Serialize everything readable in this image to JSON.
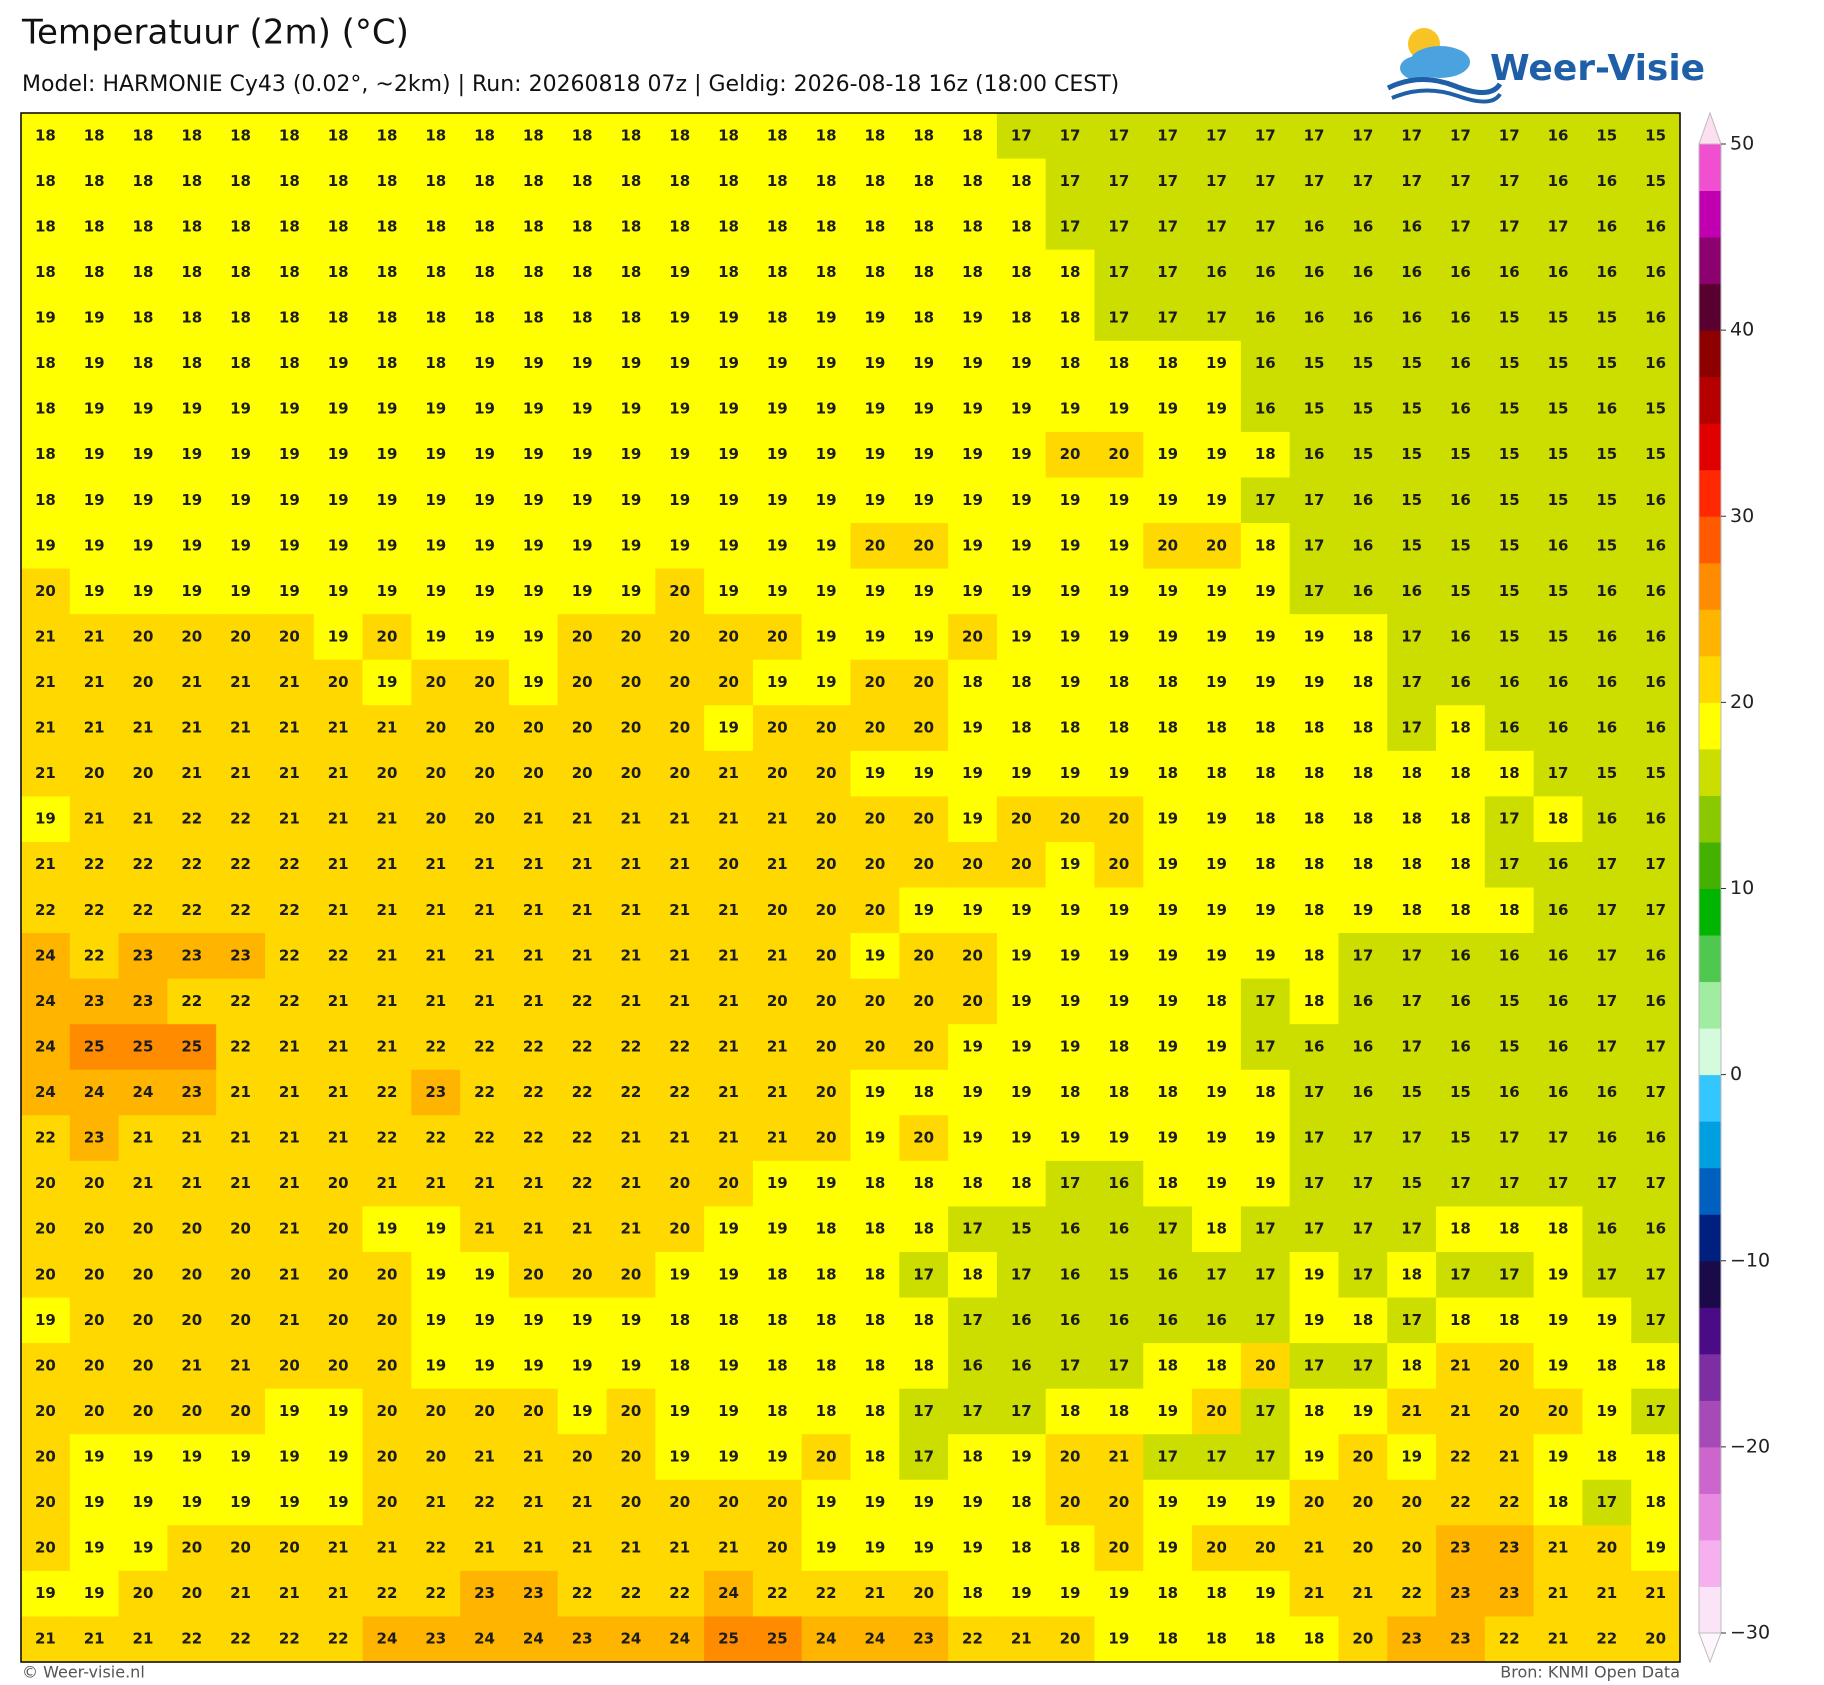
{
  "header": {
    "title": "Temperatuur (2m) (°C)",
    "subtitle": "Model: HARMONIE Cy43 (0.02°, ~2km)  |  Run: 20260818 07z  |  Geldig: 2026-08-18 16z (18:00 CEST)"
  },
  "logo": "Weer-Visie",
  "grid": {
    "values": [
      [
        18,
        18,
        18,
        18,
        18,
        18,
        18,
        18,
        18,
        18,
        18,
        18,
        18,
        18,
        18,
        18,
        18,
        18,
        18,
        18,
        17,
        17,
        17,
        17,
        17,
        17,
        17,
        17,
        17,
        17,
        17,
        16,
        15,
        15
      ],
      [
        18,
        18,
        18,
        18,
        18,
        18,
        18,
        18,
        18,
        18,
        18,
        18,
        18,
        18,
        18,
        18,
        18,
        18,
        18,
        18,
        18,
        17,
        17,
        17,
        17,
        17,
        17,
        17,
        17,
        17,
        17,
        16,
        16,
        15
      ],
      [
        18,
        18,
        18,
        18,
        18,
        18,
        18,
        18,
        18,
        18,
        18,
        18,
        18,
        18,
        18,
        18,
        18,
        18,
        18,
        18,
        18,
        17,
        17,
        17,
        17,
        17,
        16,
        16,
        16,
        17,
        17,
        17,
        16,
        16
      ],
      [
        18,
        18,
        18,
        18,
        18,
        18,
        18,
        18,
        18,
        18,
        18,
        18,
        18,
        19,
        18,
        18,
        18,
        18,
        18,
        18,
        18,
        18,
        17,
        17,
        16,
        16,
        16,
        16,
        16,
        16,
        16,
        16,
        16,
        16
      ],
      [
        19,
        19,
        18,
        18,
        18,
        18,
        18,
        18,
        18,
        18,
        18,
        18,
        18,
        19,
        19,
        18,
        19,
        19,
        18,
        19,
        18,
        18,
        17,
        17,
        17,
        16,
        16,
        16,
        16,
        16,
        15,
        15,
        15,
        16
      ],
      [
        18,
        19,
        18,
        18,
        18,
        18,
        19,
        18,
        18,
        19,
        19,
        19,
        19,
        19,
        19,
        19,
        19,
        19,
        19,
        19,
        19,
        18,
        18,
        18,
        19,
        16,
        15,
        15,
        15,
        16,
        15,
        15,
        15,
        16
      ],
      [
        18,
        19,
        19,
        19,
        19,
        19,
        19,
        19,
        19,
        19,
        19,
        19,
        19,
        19,
        19,
        19,
        19,
        19,
        19,
        19,
        19,
        19,
        19,
        19,
        19,
        16,
        15,
        15,
        15,
        16,
        15,
        15,
        16,
        15
      ],
      [
        18,
        19,
        19,
        19,
        19,
        19,
        19,
        19,
        19,
        19,
        19,
        19,
        19,
        19,
        19,
        19,
        19,
        19,
        19,
        19,
        19,
        20,
        20,
        19,
        19,
        18,
        16,
        15,
        15,
        15,
        15,
        15,
        15,
        15
      ],
      [
        18,
        19,
        19,
        19,
        19,
        19,
        19,
        19,
        19,
        19,
        19,
        19,
        19,
        19,
        19,
        19,
        19,
        19,
        19,
        19,
        19,
        19,
        19,
        19,
        19,
        17,
        17,
        16,
        15,
        16,
        15,
        15,
        15,
        16
      ],
      [
        19,
        19,
        19,
        19,
        19,
        19,
        19,
        19,
        19,
        19,
        19,
        19,
        19,
        19,
        19,
        19,
        19,
        20,
        20,
        19,
        19,
        19,
        19,
        20,
        20,
        18,
        17,
        16,
        15,
        15,
        15,
        16,
        15,
        16
      ],
      [
        20,
        19,
        19,
        19,
        19,
        19,
        19,
        19,
        19,
        19,
        19,
        19,
        19,
        20,
        19,
        19,
        19,
        19,
        19,
        19,
        19,
        19,
        19,
        19,
        19,
        19,
        17,
        16,
        16,
        15,
        15,
        15,
        16,
        16
      ],
      [
        21,
        21,
        20,
        20,
        20,
        20,
        19,
        20,
        19,
        19,
        19,
        20,
        20,
        20,
        20,
        20,
        19,
        19,
        19,
        20,
        19,
        19,
        19,
        19,
        19,
        19,
        19,
        18,
        17,
        16,
        15,
        15,
        16,
        16
      ],
      [
        21,
        21,
        20,
        21,
        21,
        21,
        20,
        19,
        20,
        20,
        19,
        20,
        20,
        20,
        20,
        19,
        19,
        20,
        20,
        18,
        18,
        19,
        18,
        18,
        19,
        19,
        19,
        18,
        17,
        16,
        16,
        16,
        16,
        16
      ],
      [
        21,
        21,
        21,
        21,
        21,
        21,
        21,
        21,
        20,
        20,
        20,
        20,
        20,
        20,
        19,
        20,
        20,
        20,
        20,
        19,
        18,
        18,
        18,
        18,
        18,
        18,
        18,
        18,
        17,
        18,
        16,
        16,
        16,
        16
      ],
      [
        21,
        20,
        20,
        21,
        21,
        21,
        21,
        20,
        20,
        20,
        20,
        20,
        20,
        20,
        21,
        20,
        20,
        19,
        19,
        19,
        19,
        19,
        19,
        18,
        18,
        18,
        18,
        18,
        18,
        18,
        18,
        17,
        15,
        15
      ],
      [
        19,
        21,
        21,
        22,
        22,
        21,
        21,
        21,
        20,
        20,
        21,
        21,
        21,
        21,
        21,
        21,
        20,
        20,
        20,
        19,
        20,
        20,
        20,
        19,
        19,
        18,
        18,
        18,
        18,
        18,
        17,
        18,
        16,
        16
      ],
      [
        21,
        22,
        22,
        22,
        22,
        22,
        21,
        21,
        21,
        21,
        21,
        21,
        21,
        21,
        20,
        21,
        20,
        20,
        20,
        20,
        20,
        19,
        20,
        19,
        19,
        18,
        18,
        18,
        18,
        18,
        17,
        16,
        17,
        17
      ],
      [
        22,
        22,
        22,
        22,
        22,
        22,
        21,
        21,
        21,
        21,
        21,
        21,
        21,
        21,
        21,
        20,
        20,
        20,
        19,
        19,
        19,
        19,
        19,
        19,
        19,
        19,
        18,
        19,
        18,
        18,
        18,
        16,
        17,
        17
      ],
      [
        24,
        22,
        23,
        23,
        23,
        22,
        22,
        21,
        21,
        21,
        21,
        21,
        21,
        21,
        21,
        21,
        20,
        19,
        20,
        20,
        19,
        19,
        19,
        19,
        19,
        19,
        18,
        17,
        17,
        16,
        16,
        16,
        17,
        16
      ],
      [
        24,
        23,
        23,
        22,
        22,
        22,
        21,
        21,
        21,
        21,
        21,
        22,
        21,
        21,
        21,
        20,
        20,
        20,
        20,
        20,
        19,
        19,
        19,
        19,
        18,
        17,
        18,
        16,
        17,
        16,
        15,
        16,
        17,
        16
      ],
      [
        24,
        25,
        25,
        25,
        22,
        21,
        21,
        21,
        22,
        22,
        22,
        22,
        22,
        22,
        21,
        21,
        20,
        20,
        20,
        19,
        19,
        19,
        18,
        19,
        19,
        17,
        16,
        16,
        17,
        16,
        15,
        16,
        17,
        17
      ],
      [
        24,
        24,
        24,
        23,
        21,
        21,
        21,
        22,
        23,
        22,
        22,
        22,
        22,
        22,
        21,
        21,
        20,
        19,
        18,
        19,
        19,
        18,
        18,
        18,
        19,
        18,
        17,
        16,
        15,
        15,
        16,
        16,
        16,
        17
      ],
      [
        22,
        23,
        21,
        21,
        21,
        21,
        21,
        22,
        22,
        22,
        22,
        22,
        21,
        21,
        21,
        21,
        20,
        19,
        20,
        19,
        19,
        19,
        19,
        19,
        19,
        19,
        17,
        17,
        17,
        15,
        17,
        17,
        16,
        16
      ],
      [
        20,
        20,
        21,
        21,
        21,
        21,
        20,
        21,
        21,
        21,
        21,
        22,
        21,
        20,
        20,
        19,
        19,
        18,
        18,
        18,
        18,
        17,
        16,
        18,
        19,
        19,
        17,
        17,
        15,
        17,
        17,
        17,
        17,
        17
      ],
      [
        20,
        20,
        20,
        20,
        20,
        21,
        20,
        19,
        19,
        21,
        21,
        21,
        21,
        20,
        19,
        19,
        18,
        18,
        18,
        17,
        15,
        16,
        16,
        17,
        18,
        17,
        17,
        17,
        17,
        18,
        18,
        18,
        16,
        16
      ],
      [
        20,
        20,
        20,
        20,
        20,
        21,
        20,
        20,
        19,
        19,
        20,
        20,
        20,
        19,
        19,
        18,
        18,
        18,
        17,
        18,
        17,
        16,
        15,
        16,
        17,
        17,
        19,
        17,
        18,
        17,
        17,
        19,
        17,
        17
      ],
      [
        19,
        20,
        20,
        20,
        20,
        21,
        20,
        20,
        19,
        19,
        19,
        19,
        19,
        18,
        18,
        18,
        18,
        18,
        18,
        17,
        16,
        16,
        16,
        16,
        16,
        17,
        19,
        18,
        17,
        18,
        18,
        19,
        19,
        17
      ],
      [
        20,
        20,
        20,
        21,
        21,
        20,
        20,
        20,
        19,
        19,
        19,
        19,
        19,
        18,
        19,
        18,
        18,
        18,
        18,
        16,
        16,
        17,
        17,
        18,
        18,
        20,
        17,
        17,
        18,
        21,
        20,
        19,
        18,
        18
      ],
      [
        20,
        20,
        20,
        20,
        20,
        19,
        19,
        20,
        20,
        20,
        20,
        19,
        20,
        19,
        19,
        18,
        18,
        18,
        17,
        17,
        17,
        18,
        18,
        19,
        20,
        17,
        18,
        19,
        21,
        21,
        20,
        20,
        19,
        17
      ],
      [
        20,
        19,
        19,
        19,
        19,
        19,
        19,
        20,
        20,
        21,
        21,
        20,
        20,
        19,
        19,
        19,
        20,
        18,
        17,
        18,
        19,
        20,
        21,
        17,
        17,
        17,
        19,
        20,
        19,
        22,
        21,
        19,
        18,
        18
      ],
      [
        20,
        19,
        19,
        19,
        19,
        19,
        19,
        20,
        21,
        22,
        21,
        21,
        20,
        20,
        20,
        20,
        19,
        19,
        19,
        19,
        18,
        20,
        20,
        19,
        19,
        19,
        20,
        20,
        20,
        22,
        22,
        18,
        17,
        18
      ],
      [
        20,
        19,
        19,
        20,
        20,
        20,
        21,
        21,
        22,
        21,
        21,
        21,
        21,
        21,
        21,
        20,
        19,
        19,
        19,
        19,
        18,
        18,
        20,
        19,
        20,
        20,
        21,
        20,
        20,
        23,
        23,
        21,
        20,
        19
      ],
      [
        19,
        19,
        20,
        20,
        21,
        21,
        21,
        22,
        22,
        23,
        23,
        22,
        22,
        22,
        24,
        22,
        22,
        21,
        20,
        18,
        19,
        19,
        19,
        18,
        18,
        19,
        21,
        21,
        22,
        23,
        23,
        21,
        21,
        21
      ],
      [
        21,
        21,
        21,
        22,
        22,
        22,
        22,
        24,
        23,
        24,
        24,
        23,
        24,
        24,
        25,
        25,
        24,
        24,
        23,
        22,
        21,
        20,
        19,
        18,
        18,
        18,
        18,
        20,
        23,
        23,
        22,
        21,
        22,
        20
      ]
    ]
  },
  "colorbar": {
    "lim": [
      -30,
      50
    ],
    "ticks": [
      {
        "value": -30,
        "label": "−30"
      },
      {
        "value": -20,
        "label": "−20"
      },
      {
        "value": -10,
        "label": "−10"
      },
      0,
      10,
      20,
      30,
      40,
      50
    ],
    "colors": [
      "#fce4f8",
      "#f6b0ef",
      "#e88ae2",
      "#cc66cc",
      "#a64ab8",
      "#7c2ea2",
      "#4c0b86",
      "#1a0a4a",
      "#002080",
      "#0060c0",
      "#00a0e0",
      "#33c6ff",
      "#d4fcdc",
      "#a0eca0",
      "#50c850",
      "#00b400",
      "#44b000",
      "#8cc800",
      "#ccdd00",
      "#ffff00",
      "#ffd800",
      "#ffb400",
      "#ff8c00",
      "#ff5a00",
      "#ff2800",
      "#e00000",
      "#b40000",
      "#8c0000",
      "#5a0030",
      "#8c0070",
      "#c000b0",
      "#f050d0"
    ]
  },
  "footer": {
    "left": "© Weer-visie.nl",
    "right": "Bron: KNMI Open Data"
  }
}
